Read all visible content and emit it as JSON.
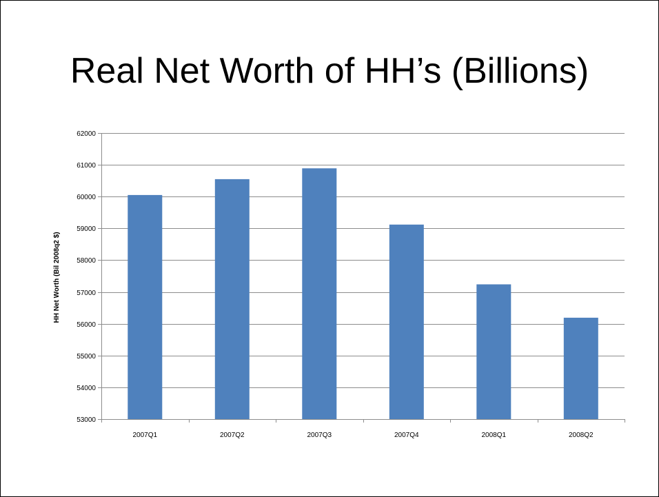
{
  "slide": {
    "title": "Real Net Worth of HH’s (Billions)"
  },
  "chart_data": {
    "type": "bar",
    "title": "",
    "xlabel": "",
    "ylabel": "HH Net Worth (Bil 2008q2 $)",
    "categories": [
      "2007Q1",
      "2007Q2",
      "2007Q3",
      "2007Q4",
      "2008Q1",
      "2008Q2"
    ],
    "series": [
      {
        "values": [
          60050,
          60550,
          60890,
          59120,
          57240,
          56190
        ]
      }
    ],
    "ylim": [
      53000,
      62000
    ],
    "yticks": [
      53000,
      54000,
      55000,
      56000,
      57000,
      58000,
      59000,
      60000,
      61000,
      62000
    ],
    "grid": true,
    "legend": "none",
    "bar_color": "#4f81bd",
    "grid_color": "#8c8c8c"
  }
}
